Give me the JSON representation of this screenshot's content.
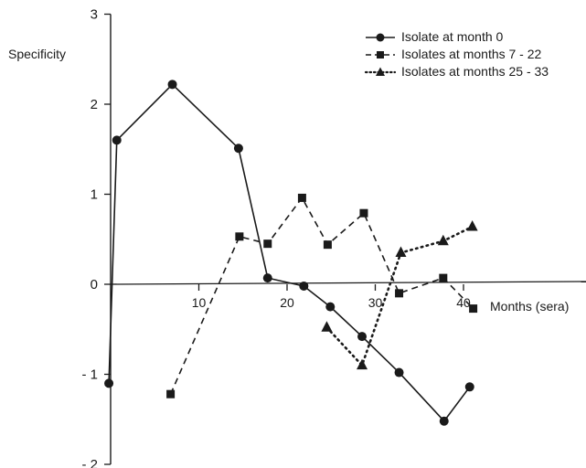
{
  "chart_data": {
    "type": "line",
    "xlabel": "Months (sera)",
    "ylabel": "Specificity",
    "xlim": [
      0,
      47
    ],
    "ylim": [
      -2,
      3
    ],
    "xticks": [
      10,
      20,
      30,
      40
    ],
    "xtick_labels": [
      "10",
      "20",
      "30",
      "40"
    ],
    "yticks": [
      -2,
      -1,
      0,
      1,
      2,
      3
    ],
    "ytick_labels": [
      "- 2",
      "- 1",
      "0",
      "1",
      "2",
      "3"
    ],
    "grid": false,
    "legend_position": "top-right",
    "series": [
      {
        "name": "Isolate at month 0",
        "marker": "circle",
        "line_style": "solid",
        "x": [
          -0.2,
          0.7,
          7,
          14.5,
          17.8,
          21.9,
          24.9,
          28.5,
          32.7,
          37.8,
          40.7
        ],
        "y": [
          -1.1,
          1.6,
          2.22,
          1.51,
          0.07,
          -0.02,
          -0.25,
          -0.58,
          -0.98,
          -1.52,
          -1.14
        ]
      },
      {
        "name": "Isolates at months 7 - 22",
        "marker": "square",
        "line_style": "dashed",
        "x": [
          6.8,
          14.6,
          17.8,
          21.7,
          24.6,
          28.7,
          32.7,
          37.7,
          41.1
        ],
        "y": [
          -1.22,
          0.53,
          0.45,
          0.96,
          0.44,
          0.79,
          -0.1,
          0.07,
          -0.27
        ]
      },
      {
        "name": "Isolates at months 25 - 33",
        "marker": "triangle",
        "line_style": "dotted",
        "x": [
          24.5,
          28.5,
          32.9,
          37.7,
          41
        ],
        "y": [
          -0.48,
          -0.9,
          0.35,
          0.48,
          0.64
        ]
      }
    ]
  }
}
